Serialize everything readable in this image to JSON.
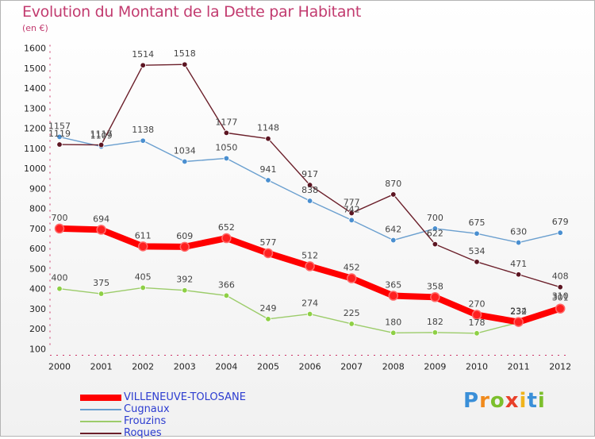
{
  "chart_data": {
    "type": "line",
    "title": "Evolution du Montant de la Dette par Habitant",
    "unit_label": "(en €)",
    "ylim": [
      100,
      1600
    ],
    "y_ticks": [
      100,
      200,
      300,
      400,
      500,
      600,
      700,
      800,
      900,
      1000,
      1100,
      1200,
      1300,
      1400,
      1500,
      1600
    ],
    "categories": [
      "2000",
      "2001",
      "2002",
      "2003",
      "2004",
      "2005",
      "2006",
      "2007",
      "2008",
      "2009",
      "2010",
      "2011",
      "2012"
    ],
    "grid": false,
    "legend_position": "bottom-left",
    "series": [
      {
        "name": "Cugnaux",
        "color": "#6a9fcf",
        "point_color": "#4a8fd0",
        "values": [
          1157,
          1109,
          1138,
          1034,
          1050,
          941,
          838,
          742,
          642,
          700,
          675,
          630,
          679
        ]
      },
      {
        "name": "Frouzins",
        "color": "#9ccc6a",
        "point_color": "#8ed045",
        "values": [
          400,
          375,
          405,
          392,
          366,
          249,
          274,
          225,
          180,
          182,
          178,
          232,
          310
        ]
      },
      {
        "name": "Roques",
        "color": "#6b1f2a",
        "point_color": "#5c1522",
        "values": [
          1119,
          1117,
          1514,
          1518,
          1177,
          1148,
          917,
          777,
          870,
          622,
          534,
          471,
          408
        ]
      },
      {
        "name": "VILLENEUVE-TOLOSANE",
        "color": "#ff0000",
        "point_color": "#ff2020",
        "values": [
          700,
          694,
          611,
          609,
          652,
          577,
          512,
          452,
          365,
          358,
          270,
          234,
          301
        ]
      }
    ]
  },
  "legend": {
    "items": [
      {
        "label": "VILLENEUVE-TOLOSANE",
        "color": "#ff0000"
      },
      {
        "label": "Cugnaux",
        "color": "#6a9fcf"
      },
      {
        "label": "Frouzins",
        "color": "#9ccc6a"
      },
      {
        "label": "Roques",
        "color": "#6b1f2a"
      }
    ]
  },
  "logo": {
    "letters": [
      "P",
      "r",
      "o",
      "x",
      "i",
      "t",
      "i"
    ],
    "colors": [
      "#3a8fd8",
      "#f08a1c",
      "#7cbf2c",
      "#e8402a",
      "#f0b41c",
      "#3a8fd8",
      "#7cbf2c"
    ]
  }
}
